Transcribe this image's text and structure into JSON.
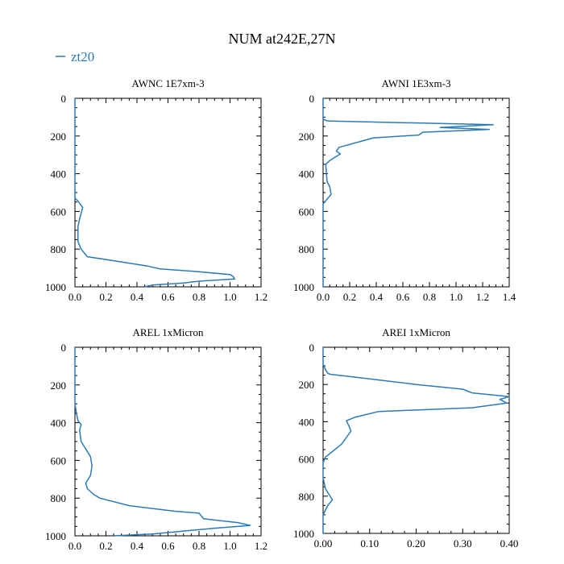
{
  "title": "NUM at242E,27N",
  "legend": {
    "label": "zt20",
    "color": "#2a7ab8"
  },
  "line_color": "#2a7ab8",
  "chart_data": [
    {
      "type": "line",
      "title": "AWNC  1E7xm-3",
      "xlim": [
        0,
        1.2
      ],
      "xticks": [
        0,
        0.2,
        0.4,
        0.6,
        0.8,
        1.0,
        1.2
      ],
      "xtick_labels": [
        "0.0",
        "0.2",
        "0.4",
        "0.6",
        "0.8",
        "1.0",
        "1.2"
      ],
      "ylim": [
        1000,
        0
      ],
      "yticks": [
        0,
        200,
        400,
        600,
        800,
        1000
      ],
      "ytick_labels": [
        "0",
        "200",
        "400",
        "600",
        "800",
        "1000"
      ],
      "series": [
        {
          "name": "zt20",
          "x": [
            0,
            0,
            0,
            0,
            0,
            0,
            0.02,
            0.05,
            0.03,
            0.02,
            0.02,
            0.02,
            0.04,
            0.08,
            0.2,
            0.47,
            0.55,
            0.8,
            1.0,
            1.02,
            1.03,
            0.8,
            0.7,
            0.5,
            0.45
          ],
          "y": [
            0,
            100,
            200,
            300,
            400,
            530,
            545,
            580,
            640,
            680,
            720,
            760,
            800,
            840,
            855,
            890,
            905,
            920,
            935,
            945,
            958,
            970,
            980,
            990,
            1000
          ]
        }
      ]
    },
    {
      "type": "line",
      "title": "AWNI  1E3xm-3",
      "xlim": [
        0,
        1.4
      ],
      "xticks": [
        0,
        0.2,
        0.4,
        0.6,
        0.8,
        1.0,
        1.2,
        1.4
      ],
      "xtick_labels": [
        "0.0",
        "0.2",
        "0.4",
        "0.6",
        "0.8",
        "1.0",
        "1.2",
        "1.4"
      ],
      "ylim": [
        1000,
        0
      ],
      "yticks": [
        0,
        200,
        400,
        600,
        800,
        1000
      ],
      "ytick_labels": [
        "0",
        "200",
        "400",
        "600",
        "800",
        "1000"
      ],
      "series": [
        {
          "name": "zt20",
          "x": [
            0,
            0,
            0.03,
            1.28,
            0.88,
            1.25,
            0.75,
            0.72,
            0.38,
            0.12,
            0.1,
            0.13,
            0.05,
            0.02,
            0.03,
            0.05,
            0.06,
            0,
            0,
            0
          ],
          "y": [
            0,
            110,
            120,
            140,
            155,
            165,
            180,
            195,
            210,
            260,
            280,
            295,
            330,
            350,
            440,
            470,
            510,
            560,
            700,
            1000
          ]
        }
      ]
    },
    {
      "type": "line",
      "title": "AREL  1xMicron",
      "xlim": [
        0,
        1.2
      ],
      "xticks": [
        0,
        0.2,
        0.4,
        0.6,
        0.8,
        1.0,
        1.2
      ],
      "xtick_labels": [
        "0.0",
        "0.2",
        "0.4",
        "0.6",
        "0.8",
        "1.0",
        "1.2"
      ],
      "ylim": [
        1000,
        0
      ],
      "yticks": [
        0,
        200,
        400,
        600,
        800,
        1000
      ],
      "ytick_labels": [
        "0",
        "200",
        "400",
        "600",
        "800",
        "1000"
      ],
      "series": [
        {
          "name": "zt20",
          "x": [
            0,
            0,
            0.01,
            0.02,
            0.04,
            0.03,
            0.04,
            0.07,
            0.1,
            0.11,
            0.1,
            0.07,
            0.08,
            0.12,
            0.16,
            0.35,
            0.65,
            0.8,
            0.83,
            1.05,
            1.13,
            0.9,
            0.7,
            0.5,
            0.25
          ],
          "y": [
            0,
            300,
            350,
            390,
            410,
            440,
            500,
            540,
            580,
            630,
            680,
            720,
            750,
            780,
            800,
            840,
            870,
            880,
            910,
            930,
            945,
            960,
            975,
            990,
            1000
          ]
        }
      ]
    },
    {
      "type": "line",
      "title": "AREI  1xMicron",
      "xlim": [
        0,
        0.4
      ],
      "xticks": [
        0,
        0.1,
        0.2,
        0.3,
        0.4
      ],
      "xtick_labels": [
        "0.00",
        "0.10",
        "0.20",
        "0.30",
        "0.40"
      ],
      "ylim": [
        1000,
        0
      ],
      "yticks": [
        0,
        200,
        400,
        600,
        800,
        1000
      ],
      "ytick_labels": [
        "0",
        "200",
        "400",
        "600",
        "800",
        "1000"
      ],
      "series": [
        {
          "name": "zt20",
          "x": [
            0,
            0,
            0.005,
            0.01,
            0.015,
            0.1,
            0.2,
            0.3,
            0.32,
            0.4,
            0.38,
            0.395,
            0.32,
            0.12,
            0.07,
            0.05,
            0.055,
            0.06,
            0.04,
            0.02,
            0.005,
            0,
            0,
            0.005,
            0.02,
            0.01,
            0,
            0
          ],
          "y": [
            0,
            90,
            120,
            140,
            145,
            170,
            200,
            225,
            245,
            265,
            280,
            300,
            325,
            345,
            375,
            395,
            420,
            450,
            520,
            560,
            590,
            620,
            700,
            760,
            820,
            850,
            900,
            1000
          ]
        }
      ]
    }
  ]
}
